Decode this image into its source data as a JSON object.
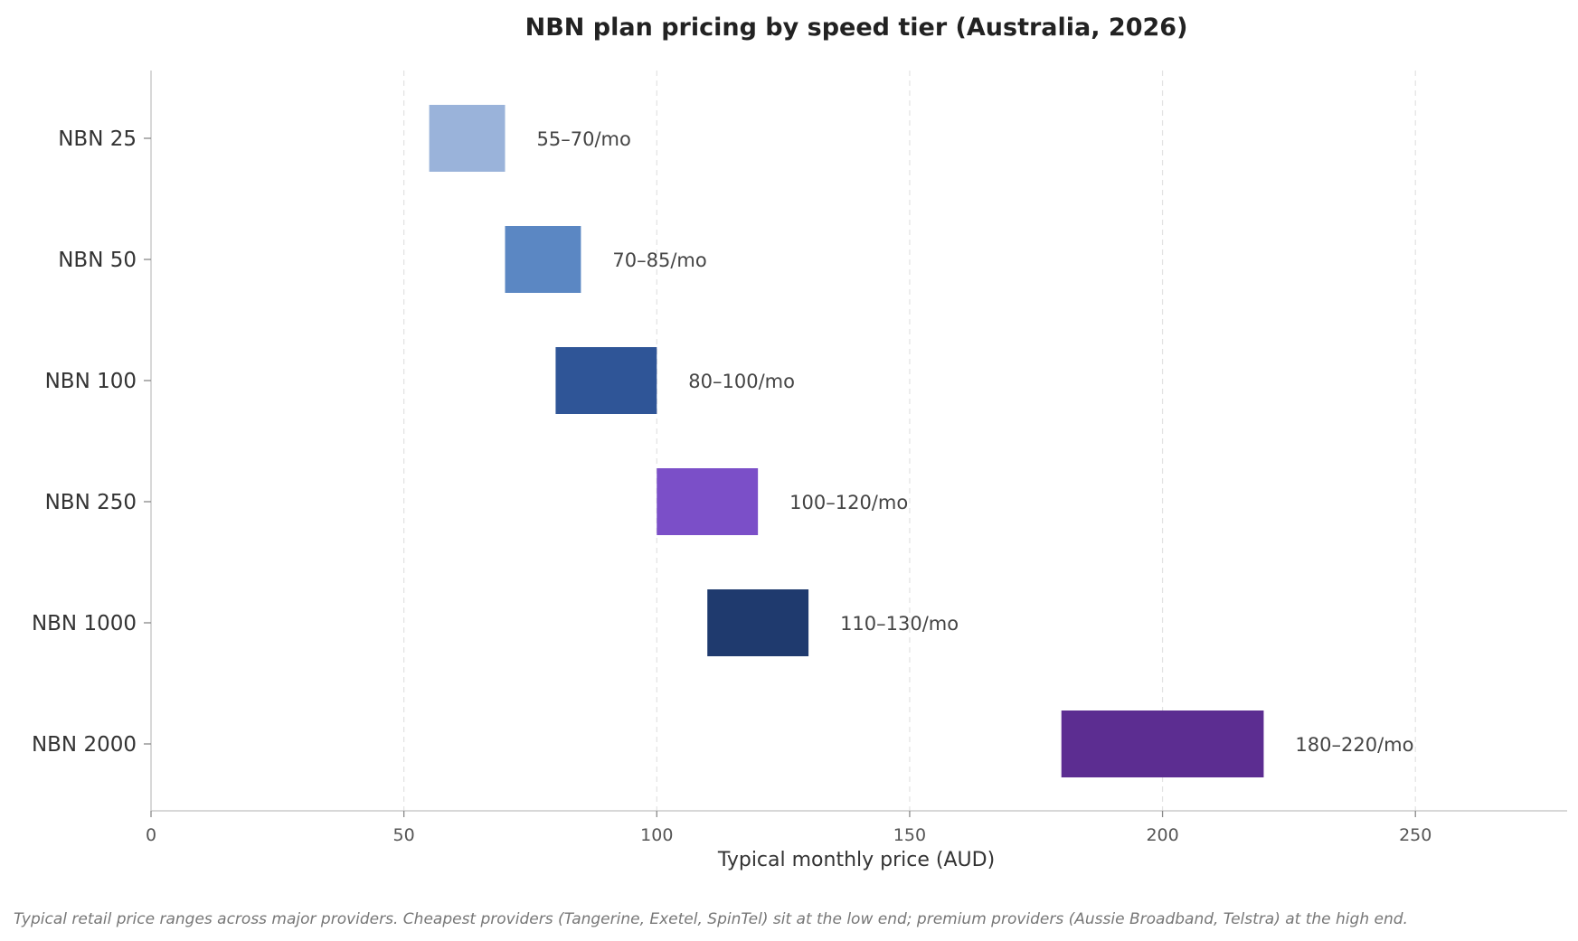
{
  "chart_data": {
    "type": "bar",
    "orientation": "horizontal-range",
    "title": "NBN plan pricing by speed tier (Australia, 2026)",
    "xlabel": "Typical monthly price (AUD)",
    "ylabel": "",
    "xlim": [
      0,
      280
    ],
    "xticks": [
      0,
      50,
      100,
      150,
      200,
      250
    ],
    "grid": "vertical dashed",
    "categories": [
      "NBN 25",
      "NBN 50",
      "NBN 100",
      "NBN 250",
      "NBN 1000",
      "NBN 2000"
    ],
    "ranges": [
      {
        "low": 55,
        "high": 70,
        "label": "55–70/mo",
        "color": "#9ab3da"
      },
      {
        "low": 70,
        "high": 85,
        "label": "70–85/mo",
        "color": "#5b87c3"
      },
      {
        "low": 80,
        "high": 100,
        "label": "80–100/mo",
        "color": "#2f5597"
      },
      {
        "low": 100,
        "high": 120,
        "label": "100–120/mo",
        "color": "#7b4fc8"
      },
      {
        "low": 110,
        "high": 130,
        "label": "110–130/mo",
        "color": "#1f3a6e"
      },
      {
        "low": 180,
        "high": 220,
        "label": "180–220/mo",
        "color": "#5c2d91"
      }
    ],
    "footnote": "Typical retail price ranges across major providers. Cheapest providers (Tangerine, Exetel, SpinTel) sit at the low end; premium providers (Aussie Broadband, Telstra) at the high end."
  }
}
